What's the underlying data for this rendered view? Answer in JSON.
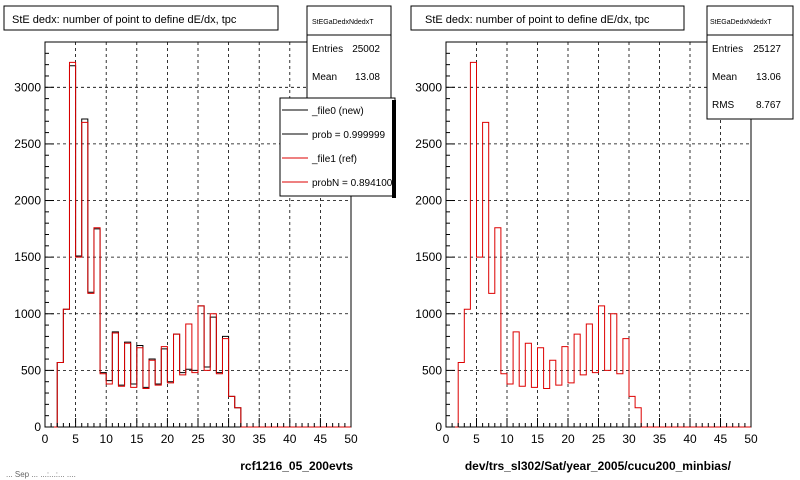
{
  "page": {
    "footer_text": "... Sep ... ...:...:... ...."
  },
  "panels": [
    {
      "title": "StE dedx: number of point to define dE/dx, tpc",
      "stats": {
        "name": "StEGaDedxNdedxT",
        "entries_label": "Entries",
        "entries_value": "25002",
        "mean_label": "Mean",
        "mean_value": "13.08"
      },
      "legend": [
        {
          "label": "_file0 (new)",
          "color": "#000000"
        },
        {
          "label": "prob = 0.999999",
          "color": "#000000"
        },
        {
          "label": "_file1 (ref)",
          "color": "#dd0000"
        },
        {
          "label": "probN = 0.894100",
          "color": "#dd0000"
        }
      ],
      "xlabel": "rcf1216_05_200evts"
    },
    {
      "title": "StE dedx: number of point to define dE/dx, tpc",
      "stats": {
        "name": "StEGaDedxNdedxT",
        "entries_label": "Entries",
        "entries_value": "25127",
        "mean_label": "Mean",
        "mean_value": "13.06",
        "rms_label": "RMS",
        "rms_value": "8.767"
      },
      "xlabel": "dev/trs_sl302/Sat/year_2005/cucu200_minbias/"
    }
  ],
  "chart_data": [
    {
      "type": "bar",
      "title": "StE dedx: number of point to define dE/dx, tpc",
      "xlabel": "rcf1216_05_200evts",
      "ylabel": "",
      "xlim": [
        0,
        50
      ],
      "ylim": [
        0,
        3400
      ],
      "xticks": [
        0,
        5,
        10,
        15,
        20,
        25,
        30,
        35,
        40,
        45,
        50
      ],
      "yticks": [
        0,
        500,
        1000,
        1500,
        2000,
        2500,
        3000
      ],
      "grid": true,
      "bin_edges_start": 0,
      "bin_width": 1,
      "series": [
        {
          "name": "_file0 (new)",
          "color": "#000000",
          "values": [
            0,
            0,
            570,
            1040,
            3190,
            1510,
            2720,
            1190,
            1750,
            480,
            410,
            840,
            370,
            750,
            380,
            720,
            350,
            600,
            380,
            690,
            400,
            820,
            480,
            510,
            500,
            1070,
            530,
            970,
            480,
            800,
            270,
            170,
            0,
            0,
            0,
            0,
            0,
            0,
            0,
            0,
            0,
            0,
            0,
            0,
            0,
            0,
            0,
            0,
            0,
            0
          ]
        },
        {
          "name": "_file1 (ref)",
          "color": "#dd0000",
          "values": [
            0,
            0,
            570,
            1040,
            3220,
            1500,
            2690,
            1180,
            1760,
            470,
            380,
            830,
            360,
            740,
            350,
            700,
            340,
            590,
            370,
            710,
            390,
            820,
            460,
            910,
            480,
            1070,
            500,
            1000,
            470,
            780,
            270,
            170,
            0,
            0,
            0,
            0,
            0,
            0,
            0,
            0,
            0,
            0,
            0,
            0,
            0,
            0,
            0,
            0,
            0,
            0
          ]
        }
      ]
    },
    {
      "type": "bar",
      "title": "StE dedx: number of point to define dE/dx, tpc",
      "xlabel": "dev/trs_sl302/Sat/year_2005/cucu200_minbias/",
      "ylabel": "",
      "xlim": [
        0,
        50
      ],
      "ylim": [
        0,
        3400
      ],
      "xticks": [
        0,
        5,
        10,
        15,
        20,
        25,
        30,
        35,
        40,
        45,
        50
      ],
      "yticks": [
        0,
        500,
        1000,
        1500,
        2000,
        2500,
        3000
      ],
      "grid": true,
      "bin_edges_start": 0,
      "bin_width": 1,
      "series": [
        {
          "color": "#dd0000",
          "values": [
            0,
            0,
            570,
            1040,
            3220,
            1500,
            2690,
            1180,
            1760,
            470,
            380,
            840,
            360,
            740,
            350,
            700,
            340,
            590,
            370,
            710,
            390,
            820,
            460,
            910,
            480,
            1070,
            500,
            1000,
            470,
            780,
            270,
            170,
            0,
            0,
            0,
            0,
            0,
            0,
            0,
            0,
            0,
            0,
            0,
            0,
            0,
            0,
            0,
            0,
            0,
            0
          ]
        }
      ]
    }
  ]
}
